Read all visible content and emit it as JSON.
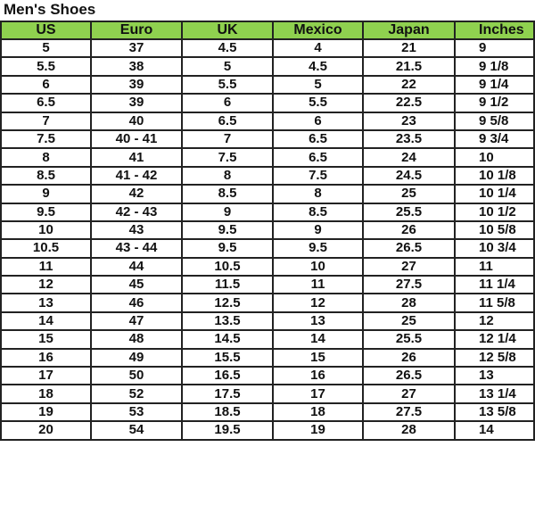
{
  "title": "Men's Shoes",
  "headers": [
    "US",
    "Euro",
    "UK",
    "Mexico",
    "Japan",
    "Inches"
  ],
  "header_color": "#8fd14f",
  "rows": [
    [
      "5",
      "37",
      "4.5",
      "4",
      "21",
      "9"
    ],
    [
      "5.5",
      "38",
      "5",
      "4.5",
      "21.5",
      "9 1/8"
    ],
    [
      "6",
      "39",
      "5.5",
      "5",
      "22",
      "9 1/4"
    ],
    [
      "6.5",
      "39",
      "6",
      "5.5",
      "22.5",
      "9 1/2"
    ],
    [
      "7",
      "40",
      "6.5",
      "6",
      "23",
      "9 5/8"
    ],
    [
      "7.5",
      "40 - 41",
      "7",
      "6.5",
      "23.5",
      "9 3/4"
    ],
    [
      "8",
      "41",
      "7.5",
      "6.5",
      "24",
      "10"
    ],
    [
      "8.5",
      "41 - 42",
      "8",
      "7.5",
      "24.5",
      "10 1/8"
    ],
    [
      "9",
      "42",
      "8.5",
      "8",
      "25",
      "10 1/4"
    ],
    [
      "9.5",
      "42 - 43",
      "9",
      "8.5",
      "25.5",
      "10 1/2"
    ],
    [
      "10",
      "43",
      "9.5",
      "9",
      "26",
      "10 5/8"
    ],
    [
      "10.5",
      "43 - 44",
      "9.5",
      "9.5",
      "26.5",
      "10 3/4"
    ],
    [
      "11",
      "44",
      "10.5",
      "10",
      "27",
      "11"
    ],
    [
      "12",
      "45",
      "11.5",
      "11",
      "27.5",
      "11 1/4"
    ],
    [
      "13",
      "46",
      "12.5",
      "12",
      "28",
      "11 5/8"
    ],
    [
      "14",
      "47",
      "13.5",
      "13",
      "25",
      "12"
    ],
    [
      "15",
      "48",
      "14.5",
      "14",
      "25.5",
      "12 1/4"
    ],
    [
      "16",
      "49",
      "15.5",
      "15",
      "26",
      "12 5/8"
    ],
    [
      "17",
      "50",
      "16.5",
      "16",
      "26.5",
      "13"
    ],
    [
      "18",
      "52",
      "17.5",
      "17",
      "27",
      "13 1/4"
    ],
    [
      "19",
      "53",
      "18.5",
      "18",
      "27.5",
      "13 5/8"
    ],
    [
      "20",
      "54",
      "19.5",
      "19",
      "28",
      "14"
    ]
  ]
}
